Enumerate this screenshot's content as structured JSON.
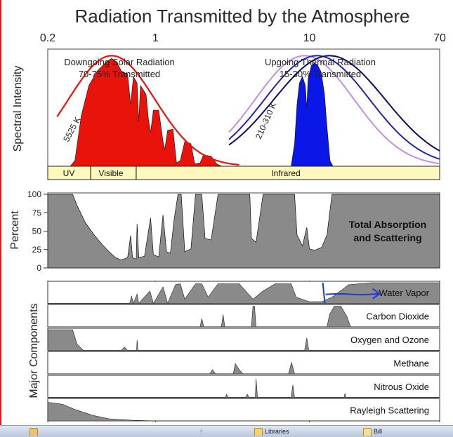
{
  "title": "Radiation Transmitted by the Atmosphere",
  "chart_data": {
    "type": "area",
    "x_scale": "log",
    "xlim": [
      0.2,
      70
    ],
    "x_unit": "micrometres",
    "x_tick_labels": [
      "0.2",
      "1",
      "10",
      "70"
    ],
    "x_ticks": [
      0.2,
      1,
      10,
      70
    ],
    "spectrum_panel": {
      "ylabel": "Spectral Intensity",
      "solar": {
        "title": "Downgoing Solar Radiation",
        "subtitle": "70-75% Transmitted",
        "curve_label": "5525 K",
        "color": "#e8140c",
        "envelope": {
          "peak_x": 0.52,
          "log_sigma": 0.28
        },
        "transmitted": [
          [
            0.28,
            0
          ],
          [
            0.3,
            0.05
          ],
          [
            0.33,
            0.45
          ],
          [
            0.37,
            0.72
          ],
          [
            0.42,
            0.85
          ],
          [
            0.48,
            0.93
          ],
          [
            0.52,
            0.96
          ],
          [
            0.56,
            0.93
          ],
          [
            0.6,
            0.85
          ],
          [
            0.66,
            0.82
          ],
          [
            0.69,
            0.55
          ],
          [
            0.72,
            0.8
          ],
          [
            0.76,
            0.74
          ],
          [
            0.78,
            0.4
          ],
          [
            0.8,
            0.72
          ],
          [
            0.87,
            0.64
          ],
          [
            0.9,
            0.42
          ],
          [
            0.93,
            0.3
          ],
          [
            0.97,
            0.5
          ],
          [
            1.05,
            0.5
          ],
          [
            1.12,
            0.22
          ],
          [
            1.15,
            0.15
          ],
          [
            1.2,
            0.32
          ],
          [
            1.3,
            0.33
          ],
          [
            1.37,
            0.03
          ],
          [
            1.45,
            0.05
          ],
          [
            1.55,
            0.22
          ],
          [
            1.7,
            0.2
          ],
          [
            1.8,
            0.02
          ],
          [
            1.95,
            0.03
          ],
          [
            2.05,
            0.1
          ],
          [
            2.3,
            0.09
          ],
          [
            2.5,
            0.02
          ],
          [
            2.7,
            0.0
          ]
        ]
      },
      "thermal": {
        "title": "Upgoing Thermal Radiation",
        "subtitle": "15-30% Transmitted",
        "curve_label": "210-310 K",
        "color": "#0b17e6",
        "curves": [
          {
            "peak_x": 9.3,
            "log_sigma": 0.32,
            "color": "#c08ee8"
          },
          {
            "peak_x": 11.2,
            "log_sigma": 0.34,
            "color": "#2222b8"
          },
          {
            "peak_x": 13.5,
            "log_sigma": 0.36,
            "color": "#0c0c60"
          }
        ],
        "transmitted": [
          [
            7.6,
            0
          ],
          [
            8.0,
            0.2
          ],
          [
            8.3,
            0.55
          ],
          [
            8.6,
            0.74
          ],
          [
            9.0,
            0.8
          ],
          [
            9.4,
            0.72
          ],
          [
            9.6,
            0.52
          ],
          [
            9.8,
            0.78
          ],
          [
            10.3,
            0.9
          ],
          [
            10.8,
            0.92
          ],
          [
            11.3,
            0.9
          ],
          [
            11.9,
            0.84
          ],
          [
            12.5,
            0.65
          ],
          [
            13.0,
            0.35
          ],
          [
            13.6,
            0.05
          ],
          [
            14.2,
            0.0
          ]
        ]
      },
      "bands": [
        "UV",
        "Visible",
        "Infrared"
      ]
    },
    "total_panel": {
      "ylabel": "Percent",
      "label": [
        "Total Absorption",
        "and Scattering"
      ],
      "y_tick_labels": [
        "100",
        "75",
        "50",
        "25",
        "0"
      ],
      "y_ticks": [
        100,
        75,
        50,
        25,
        0
      ],
      "ylim": [
        0,
        100
      ],
      "absorption": [
        [
          0.2,
          100
        ],
        [
          0.29,
          100
        ],
        [
          0.31,
          85
        ],
        [
          0.35,
          62
        ],
        [
          0.4,
          45
        ],
        [
          0.45,
          32
        ],
        [
          0.5,
          22
        ],
        [
          0.55,
          14
        ],
        [
          0.6,
          11
        ],
        [
          0.66,
          14
        ],
        [
          0.69,
          44
        ],
        [
          0.71,
          14
        ],
        [
          0.75,
          12
        ],
        [
          0.76,
          60
        ],
        [
          0.78,
          14
        ],
        [
          0.85,
          16
        ],
        [
          0.93,
          68
        ],
        [
          0.97,
          18
        ],
        [
          1.05,
          15
        ],
        [
          1.12,
          72
        ],
        [
          1.18,
          22
        ],
        [
          1.25,
          20
        ],
        [
          1.32,
          65
        ],
        [
          1.4,
          100
        ],
        [
          1.47,
          100
        ],
        [
          1.55,
          22
        ],
        [
          1.7,
          26
        ],
        [
          1.82,
          100
        ],
        [
          2.0,
          100
        ],
        [
          2.1,
          40
        ],
        [
          2.3,
          38
        ],
        [
          2.55,
          100
        ],
        [
          4.1,
          100
        ],
        [
          4.2,
          40
        ],
        [
          4.5,
          35
        ],
        [
          5.0,
          100
        ],
        [
          8.0,
          100
        ],
        [
          8.3,
          45
        ],
        [
          9.0,
          30
        ],
        [
          9.6,
          55
        ],
        [
          10.0,
          26
        ],
        [
          10.8,
          24
        ],
        [
          12.0,
          28
        ],
        [
          13.0,
          45
        ],
        [
          14.0,
          100
        ],
        [
          70,
          100
        ]
      ]
    },
    "components_panel": {
      "ylabel": "Major Components",
      "components": [
        {
          "name": "Water Vapor",
          "profile": [
            [
              0.2,
              0
            ],
            [
              0.68,
              0
            ],
            [
              0.7,
              0.35
            ],
            [
              0.72,
              0
            ],
            [
              0.76,
              0.45
            ],
            [
              0.78,
              0
            ],
            [
              0.92,
              0.6
            ],
            [
              0.97,
              0
            ],
            [
              1.12,
              0.8
            ],
            [
              1.2,
              0
            ],
            [
              1.35,
              0.9
            ],
            [
              1.45,
              0.95
            ],
            [
              1.55,
              0.2
            ],
            [
              1.82,
              0.95
            ],
            [
              2.0,
              0.95
            ],
            [
              2.2,
              0.3
            ],
            [
              2.55,
              0.95
            ],
            [
              3.5,
              0.95
            ],
            [
              4.3,
              0.2
            ],
            [
              5.0,
              0.6
            ],
            [
              6.0,
              0.95
            ],
            [
              7.6,
              0.95
            ],
            [
              8.2,
              0.3
            ],
            [
              10.0,
              0.08
            ],
            [
              12.0,
              0.08
            ],
            [
              14.0,
              0.3
            ],
            [
              18.0,
              0.9
            ],
            [
              25.0,
              1.0
            ],
            [
              70,
              1.0
            ]
          ],
          "annotation_arrow": {
            "from_x": 12.2,
            "to_x": 28.0
          }
        },
        {
          "name": "Carbon Dioxide",
          "profile": [
            [
              0.2,
              0
            ],
            [
              1.95,
              0
            ],
            [
              2.0,
              0.4
            ],
            [
              2.06,
              0
            ],
            [
              2.68,
              0
            ],
            [
              2.75,
              0.6
            ],
            [
              2.82,
              0
            ],
            [
              4.2,
              0
            ],
            [
              4.3,
              1.0
            ],
            [
              4.4,
              1.0
            ],
            [
              4.5,
              0
            ],
            [
              13.0,
              0
            ],
            [
              13.5,
              0.6
            ],
            [
              14.5,
              1.0
            ],
            [
              16.0,
              1.0
            ],
            [
              17.5,
              0.5
            ],
            [
              18.5,
              0
            ],
            [
              70,
              0
            ]
          ]
        },
        {
          "name": "Oxygen and Ozone",
          "profile": [
            [
              0.2,
              1.0
            ],
            [
              0.29,
              1.0
            ],
            [
              0.31,
              0.3
            ],
            [
              0.34,
              0
            ],
            [
              0.6,
              0
            ],
            [
              0.63,
              0.15
            ],
            [
              0.66,
              0
            ],
            [
              0.755,
              0
            ],
            [
              0.76,
              0.5
            ],
            [
              0.77,
              0
            ],
            [
              9.3,
              0
            ],
            [
              9.6,
              0.6
            ],
            [
              9.9,
              0
            ],
            [
              70,
              0
            ]
          ]
        },
        {
          "name": "Methane",
          "profile": [
            [
              0.2,
              0
            ],
            [
              2.25,
              0
            ],
            [
              2.35,
              0.2
            ],
            [
              2.45,
              0
            ],
            [
              3.2,
              0
            ],
            [
              3.3,
              0.5
            ],
            [
              3.5,
              0.2
            ],
            [
              3.7,
              0
            ],
            [
              7.3,
              0
            ],
            [
              7.65,
              0.55
            ],
            [
              8.0,
              0
            ],
            [
              70,
              0
            ]
          ]
        },
        {
          "name": "Nitrous Oxide",
          "profile": [
            [
              0.2,
              0
            ],
            [
              2.85,
              0
            ],
            [
              2.9,
              0.15
            ],
            [
              2.95,
              0
            ],
            [
              3.85,
              0
            ],
            [
              3.95,
              0.15
            ],
            [
              4.05,
              0
            ],
            [
              4.45,
              0
            ],
            [
              4.5,
              0.9
            ],
            [
              4.6,
              0
            ],
            [
              7.6,
              0
            ],
            [
              7.8,
              0.6
            ],
            [
              8.0,
              0
            ],
            [
              16.8,
              0
            ],
            [
              17.0,
              0.2
            ],
            [
              17.2,
              0
            ],
            [
              70,
              0
            ]
          ]
        },
        {
          "name": "Rayleigh Scattering",
          "profile": [
            [
              0.2,
              0.9
            ],
            [
              0.25,
              0.8
            ],
            [
              0.3,
              0.55
            ],
            [
              0.4,
              0.25
            ],
            [
              0.5,
              0.1
            ],
            [
              0.7,
              0.03
            ],
            [
              1.0,
              0.0
            ],
            [
              70,
              0
            ]
          ]
        }
      ]
    }
  },
  "taskbar": {
    "items": [
      "Libraries",
      "Bill"
    ]
  }
}
